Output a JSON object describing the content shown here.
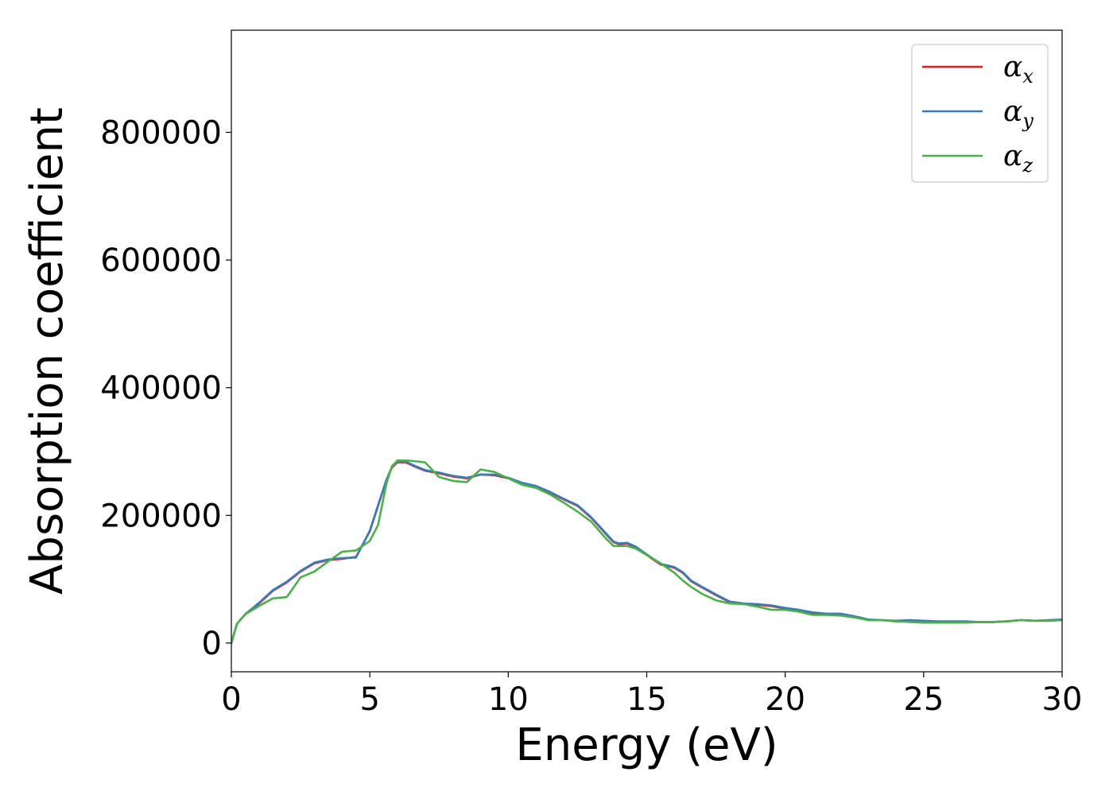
{
  "chart_data": {
    "type": "line",
    "title": "",
    "xlabel": "Energy (eV)",
    "ylabel": "Absorption coefficient",
    "xlim": [
      0,
      30
    ],
    "ylim": [
      -45000,
      960000
    ],
    "xticks": [
      0,
      5,
      10,
      15,
      20,
      25,
      30
    ],
    "xtick_labels": [
      "0",
      "5",
      "10",
      "15",
      "20",
      "25",
      "30"
    ],
    "yticks": [
      0,
      200000,
      400000,
      600000,
      800000
    ],
    "ytick_labels": [
      "0",
      "200000",
      "400000",
      "600000",
      "800000"
    ],
    "grid": false,
    "legend_position": "top-right",
    "series": [
      {
        "name": "α_x",
        "legend_main": "α",
        "legend_sub": "x",
        "color": "#e41a1c",
        "x": [
          0,
          0.2,
          0.5,
          1,
          1.5,
          2,
          2.5,
          3,
          3.5,
          4,
          4.5,
          5,
          5.3,
          5.6,
          5.8,
          6,
          6.3,
          6.6,
          7,
          7.5,
          8,
          8.5,
          9,
          9.5,
          10,
          10.5,
          11,
          11.5,
          12,
          12.5,
          13,
          13.5,
          13.8,
          14,
          14.3,
          14.6,
          15,
          15.5,
          16,
          16.3,
          16.6,
          17,
          17.5,
          18,
          18.5,
          19,
          19.5,
          20,
          20.5,
          21,
          21.5,
          22,
          22.5,
          23,
          23.5,
          24,
          24.5,
          25,
          25.5,
          26,
          26.5,
          27,
          27.5,
          28,
          28.5,
          29,
          29.5,
          30
        ],
        "y": [
          0,
          30000,
          45000,
          62000,
          82000,
          95000,
          112000,
          125000,
          130000,
          132000,
          135000,
          175000,
          215000,
          255000,
          275000,
          283000,
          283000,
          277000,
          270000,
          266000,
          261000,
          258000,
          264000,
          263000,
          258000,
          250000,
          245000,
          236000,
          225000,
          215000,
          196000,
          172000,
          158000,
          155000,
          156000,
          150000,
          138000,
          123000,
          118000,
          110000,
          97000,
          87000,
          75000,
          64000,
          61000,
          60000,
          58000,
          54000,
          51000,
          47000,
          45000,
          45000,
          41000,
          36000,
          36000,
          34000,
          35000,
          34000,
          33000,
          33000,
          33000,
          33000,
          33000,
          34000,
          36000,
          35000,
          35000,
          36000
        ]
      },
      {
        "name": "α_y",
        "legend_main": "α",
        "legend_sub": "y",
        "color": "#377eb8",
        "x": [
          0,
          0.2,
          0.5,
          1,
          1.5,
          2,
          2.5,
          3,
          3.5,
          4,
          4.5,
          5,
          5.3,
          5.6,
          5.8,
          6,
          6.3,
          6.6,
          7,
          7.5,
          8,
          8.5,
          9,
          9.5,
          10,
          10.5,
          11,
          11.5,
          12,
          12.5,
          13,
          13.5,
          13.8,
          14,
          14.3,
          14.6,
          15,
          15.5,
          16,
          16.3,
          16.6,
          17,
          17.5,
          18,
          18.5,
          19,
          19.5,
          20,
          20.5,
          21,
          21.5,
          22,
          22.5,
          23,
          23.5,
          24,
          24.5,
          25,
          25.5,
          26,
          26.5,
          27,
          27.5,
          28,
          28.5,
          29,
          29.5,
          30
        ],
        "y": [
          0,
          30000,
          45000,
          63000,
          83000,
          96000,
          113000,
          126000,
          131000,
          133000,
          134000,
          176000,
          216000,
          256000,
          276000,
          284000,
          284000,
          278000,
          271000,
          267000,
          262000,
          259000,
          264000,
          264000,
          259000,
          251000,
          246000,
          237000,
          226000,
          216000,
          197000,
          173000,
          159000,
          156000,
          157000,
          151000,
          139000,
          124000,
          119000,
          111000,
          98000,
          88000,
          76000,
          65000,
          62000,
          61000,
          59000,
          55000,
          52000,
          48000,
          46000,
          46000,
          42000,
          37000,
          36000,
          35000,
          36000,
          35000,
          34000,
          34000,
          34000,
          33000,
          33000,
          34000,
          36000,
          35000,
          36000,
          37000
        ]
      },
      {
        "name": "α_z",
        "legend_main": "α",
        "legend_sub": "z",
        "color": "#4daf4a",
        "x": [
          0,
          0.2,
          0.5,
          1,
          1.5,
          2,
          2.5,
          3,
          3.5,
          4,
          4.5,
          5,
          5.3,
          5.6,
          5.8,
          6,
          6.3,
          6.6,
          7,
          7.5,
          8,
          8.5,
          9,
          9.5,
          10,
          10.5,
          11,
          11.5,
          12,
          12.5,
          13,
          13.5,
          13.8,
          14,
          14.3,
          14.6,
          15,
          15.5,
          16,
          16.3,
          16.6,
          17,
          17.5,
          18,
          18.5,
          19,
          19.5,
          20,
          20.5,
          21,
          21.5,
          22,
          22.5,
          23,
          23.5,
          24,
          24.5,
          25,
          25.5,
          26,
          26.5,
          27,
          27.5,
          28,
          28.5,
          29,
          29.5,
          30
        ],
        "y": [
          0,
          30000,
          45000,
          58000,
          70000,
          72000,
          103000,
          112000,
          128000,
          143000,
          145000,
          160000,
          185000,
          250000,
          277000,
          286000,
          286000,
          285000,
          283000,
          260000,
          254000,
          252000,
          272000,
          268000,
          258000,
          248000,
          243000,
          233000,
          220000,
          206000,
          190000,
          165000,
          152000,
          152000,
          152000,
          148000,
          138000,
          125000,
          110000,
          98000,
          88000,
          77000,
          67000,
          62000,
          61000,
          57000,
          52000,
          52000,
          49000,
          44000,
          44000,
          43000,
          40000,
          36000,
          36000,
          34000,
          33000,
          32000,
          32000,
          32000,
          32000,
          33000,
          33000,
          34000,
          36000,
          35000,
          35000,
          36000
        ]
      }
    ]
  }
}
